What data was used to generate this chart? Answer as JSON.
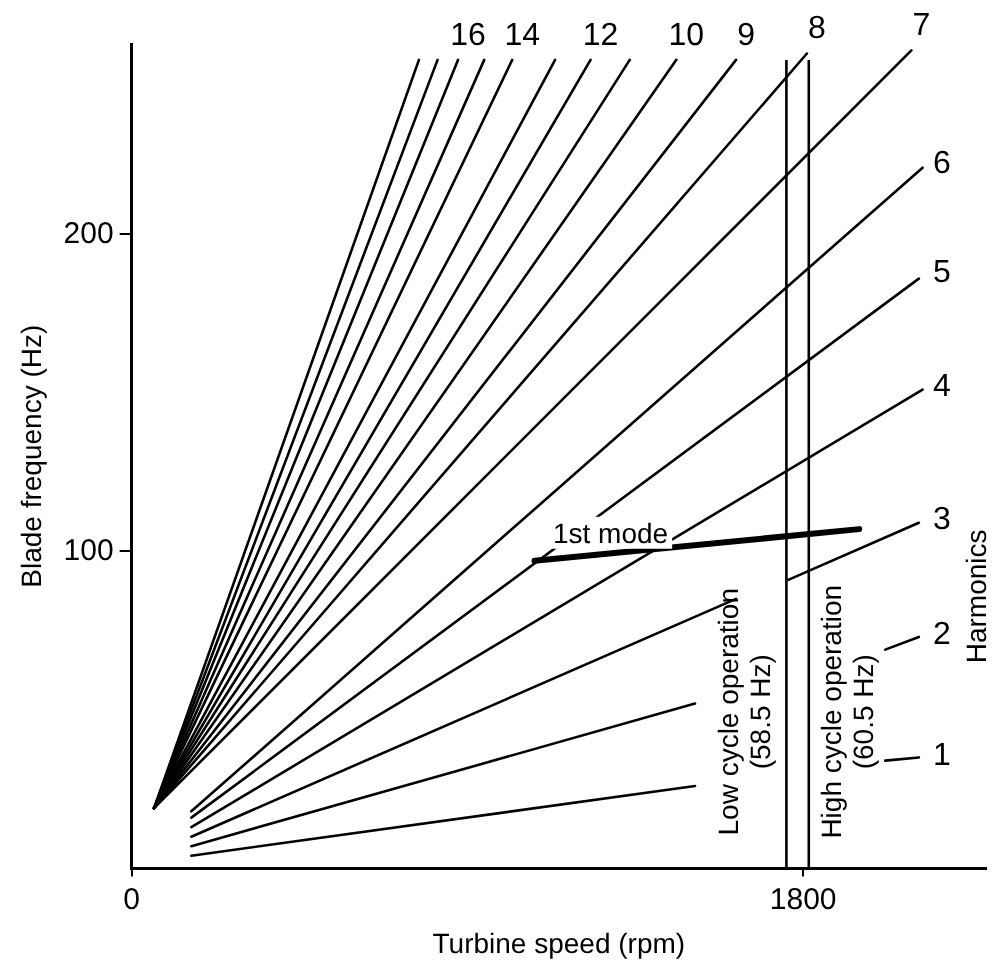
{
  "chart_data": {
    "type": "line",
    "xlabel": "Turbine speed (rpm)",
    "ylabel": "Blade frequency (Hz)",
    "xlim": [
      0,
      2290
    ],
    "xticks": [
      0,
      1800
    ],
    "ylim": [
      0,
      260
    ],
    "yticks": [
      100,
      200
    ],
    "grid": false,
    "legend": false,
    "marker": "none",
    "line_style": "solid",
    "series": [
      {
        "name": "1",
        "color": "#000000",
        "x": [
          160,
          1510,
          1760,
          2020,
          2110
        ],
        "values": [
          4,
          26,
          null,
          34,
          35
        ]
      },
      {
        "name": "2",
        "color": "#000000",
        "x": [
          160,
          1510,
          1760,
          2020,
          2110
        ],
        "values": [
          7,
          52,
          null,
          69,
          73
        ]
      },
      {
        "name": "3",
        "color": "#000000",
        "x": [
          160,
          1620,
          1700,
          1760,
          2110
        ],
        "values": [
          10,
          85,
          null,
          91,
          109
        ]
      },
      {
        "name": "4",
        "color": "#000000",
        "x": [
          160,
          2120
        ],
        "values": [
          13,
          151
        ]
      },
      {
        "name": "5",
        "color": "#000000",
        "x": [
          160,
          2110
        ],
        "values": [
          16,
          186
        ]
      },
      {
        "name": "6",
        "color": "#000000",
        "x": [
          160,
          2120
        ],
        "values": [
          18,
          221
        ]
      },
      {
        "name": "7",
        "color": "#000000",
        "x": [
          60,
          2090
        ],
        "values": [
          19,
          258
        ]
      },
      {
        "name": "8",
        "color": "#000000",
        "x": [
          60,
          1810
        ],
        "values": [
          19,
          257
        ]
      },
      {
        "name": "9",
        "color": "#000000",
        "x": [
          60,
          1620
        ],
        "values": [
          19,
          255
        ]
      },
      {
        "name": "10",
        "color": "#000000",
        "x": [
          60,
          1460
        ],
        "values": [
          19,
          255
        ]
      },
      {
        "color": "#000000",
        "x": [
          60,
          1335
        ],
        "values": [
          19,
          255
        ]
      },
      {
        "name": "12",
        "color": "#000000",
        "x": [
          60,
          1230
        ],
        "values": [
          19,
          255
        ]
      },
      {
        "color": "#000000",
        "x": [
          60,
          1135
        ],
        "values": [
          19,
          255
        ]
      },
      {
        "name": "14",
        "color": "#000000",
        "x": [
          60,
          1020
        ],
        "values": [
          19,
          255
        ]
      },
      {
        "color": "#000000",
        "x": [
          60,
          945
        ],
        "values": [
          19,
          255
        ]
      },
      {
        "name": "16",
        "color": "#000000",
        "x": [
          60,
          875
        ],
        "values": [
          19,
          255
        ]
      },
      {
        "color": "#000000",
        "x": [
          60,
          820
        ],
        "values": [
          19,
          255
        ]
      },
      {
        "color": "#000000",
        "x": [
          60,
          770
        ],
        "values": [
          19,
          255
        ]
      },
      {
        "name": "1st mode",
        "color": "#000000",
        "x": [
          1080,
          1950
        ],
        "values": [
          97,
          107
        ]
      }
    ],
    "ref_lines": [
      {
        "axis": "x",
        "value": 1755,
        "label": "Low cycle operation\n(58.5 Hz)",
        "color": "#000000"
      },
      {
        "axis": "x",
        "value": 1815,
        "label": "High cycle operation\n(60.5 Hz)",
        "color": "#000000"
      }
    ],
    "annotations": [
      "Harmonics"
    ]
  }
}
